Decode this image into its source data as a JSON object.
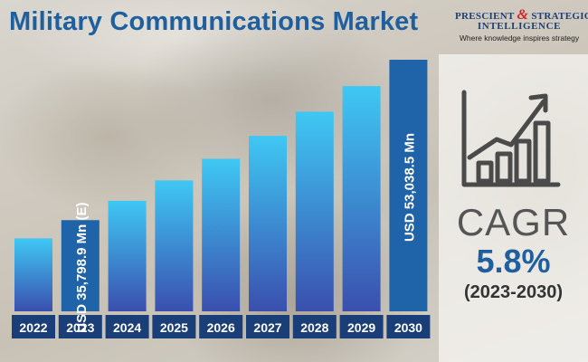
{
  "title": "Military Communications Market",
  "logo": {
    "line1_a": "PRESCIENT",
    "line1_amp": "&",
    "line1_b": "STRATEGIC",
    "line2": "INTELLIGENCE",
    "tagline": "Where knowledge inspires strategy"
  },
  "cagr": {
    "label": "CAGR",
    "value": "5.8%",
    "period": "(2023-2030)",
    "icon": "growth-chart-icon"
  },
  "chart_data": {
    "type": "bar",
    "categories": [
      "2022",
      "2023",
      "2024",
      "2025",
      "2026",
      "2027",
      "2028",
      "2029",
      "2030"
    ],
    "values": [
      33840,
      35798.9,
      37875,
      40072,
      42396,
      44855,
      47456,
      50209,
      53038.5
    ],
    "data_labels": {
      "1": "USD 35,798.9 Mn (E)",
      "8": "USD 53,038.5 Mn"
    },
    "colors": {
      "bar_top": "#3fc8f4",
      "bar_bottom": "#3a4fae",
      "highlight_bar": "#1f63a8",
      "label_bg": "#1a3e78"
    },
    "ylim": [
      0,
      55000
    ],
    "grid": false
  }
}
